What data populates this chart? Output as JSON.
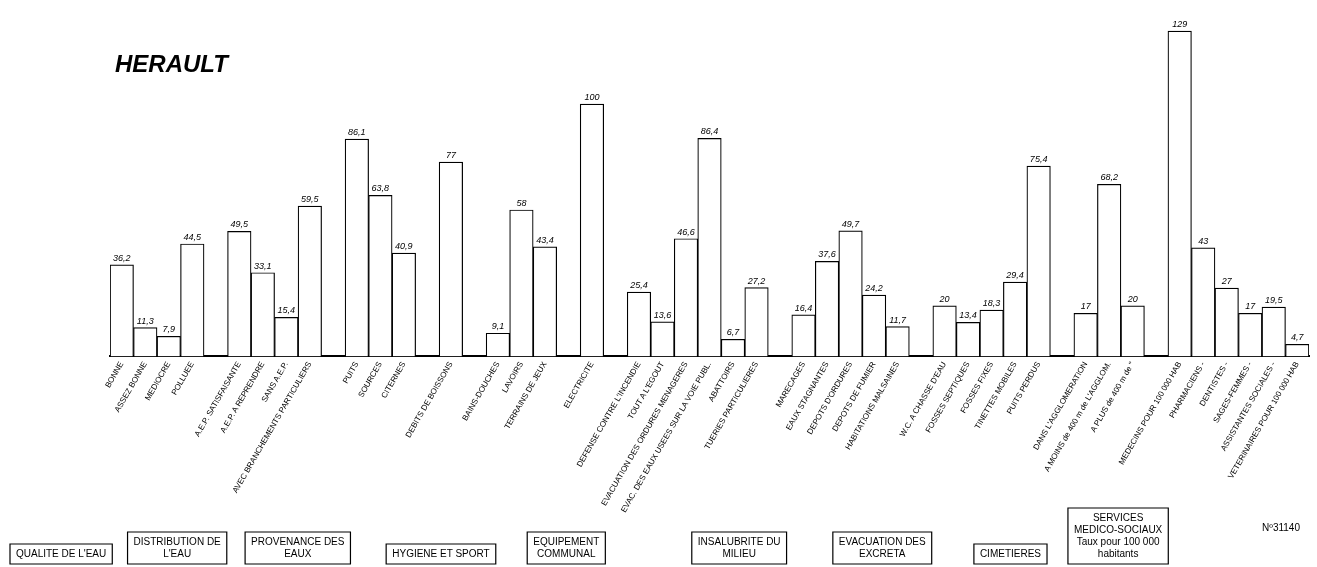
{
  "chart_data": {
    "type": "bar",
    "title": "HERAULT",
    "categories": [
      "BONNE",
      "ASSEZ BONNE",
      "MEDIOCRE",
      "POLLUEE",
      null,
      "A.E.P. SATISFAISANTE",
      "A.E.P. A REPRENDRE",
      "SANS A.E.P.",
      "AVEC BRANCHEMENTS PARTICULIERS",
      null,
      "PUITS",
      "SOURCES",
      "CITERNES",
      null,
      "DEBITS DE BOISSONS",
      null,
      "BAINS-DOUCHES",
      "LAVOIRS",
      "TERRAINS DE JEUX",
      null,
      "ELECTRICITE",
      null,
      "DEFENSE CONTRE L'INCENDIE",
      "TOUT A L'EGOUT",
      "EVACUATION DES ORDURES MENAGERES",
      "EVAC. DES EAUX USEES SUR LA VOIE PUBL.",
      "ABATTOIRS",
      "TUERIES PARTICULIERES",
      null,
      "MARECAGES",
      "EAUX STAGNANTES",
      "DEPOTS D'ORDURES",
      "DEPOTS DE FUMIER",
      "HABITATIONS MALSAINES",
      null,
      "W.C. A CHASSE D'EAU",
      "FOSSES SEPTIQUES",
      "FOSSES FIXES",
      "TINETTES MOBILES",
      "PUITS PERDUS",
      null,
      "DANS L'AGGLOMERATION",
      "A MOINS de 400 m de L'AGGLOM.",
      "A PLUS de 400 m de \"",
      null,
      "MEDECINS POUR 100 000 HAB",
      "PHARMACIENS -",
      "DENTISTES -",
      "SAGES-FEMMES -",
      "ASSISTANTES SOCIALES -",
      "VETERINAIRES POUR 100 000 HAB"
    ],
    "values": [
      36.2,
      11.3,
      7.9,
      44.5,
      null,
      49.5,
      33.1,
      15.4,
      59.5,
      null,
      86.1,
      63.8,
      40.9,
      null,
      77,
      null,
      9.1,
      58,
      43.4,
      null,
      100,
      null,
      25.4,
      13.6,
      46.6,
      86.4,
      6.7,
      27.2,
      null,
      16.4,
      37.6,
      49.7,
      24.2,
      11.7,
      null,
      20,
      13.4,
      18.3,
      29.4,
      75.4,
      null,
      17,
      68.2,
      20,
      null,
      129,
      43,
      27,
      17,
      19.5,
      4.7
    ],
    "value_labels": [
      "36,2",
      "11,3",
      "7,9",
      "44,5",
      null,
      "49,5",
      "33,1",
      "15,4",
      "59,5",
      null,
      "86,1",
      "63,8",
      "40,9",
      null,
      "77",
      null,
      "9,1",
      "58",
      "43,4",
      null,
      "100",
      null,
      "25,4",
      "13,6",
      "46,6",
      "86,4",
      "6,7",
      "27,2",
      null,
      "16,4",
      "37,6",
      "49,7",
      "24,2",
      "11,7",
      null,
      "20",
      "13,4",
      "18,3",
      "29,4",
      "75,4",
      null,
      "17",
      "68,2",
      "20",
      null,
      "129",
      "43",
      "27",
      "17",
      "19,5",
      "4,7"
    ],
    "color": "#ffffff",
    "tick_labels": "x",
    "annotations": [
      "QUALITE DE L'EAU",
      "DISTRIBUTION DE L'EAU",
      "PROVENANCE DES EAUX",
      "HYGIENE ET SPORT",
      "EQUIPEMENT COMMUNAL",
      "INSALUBRITE DU MILIEU",
      "EVACUATION DES EXCRETA",
      "CIMETIERES",
      "SERVICES MEDICO-SOCIAUX\nTaux pour 100 000 habitants",
      "Nº31140"
    ],
    "grid": false,
    "legend": false
  }
}
